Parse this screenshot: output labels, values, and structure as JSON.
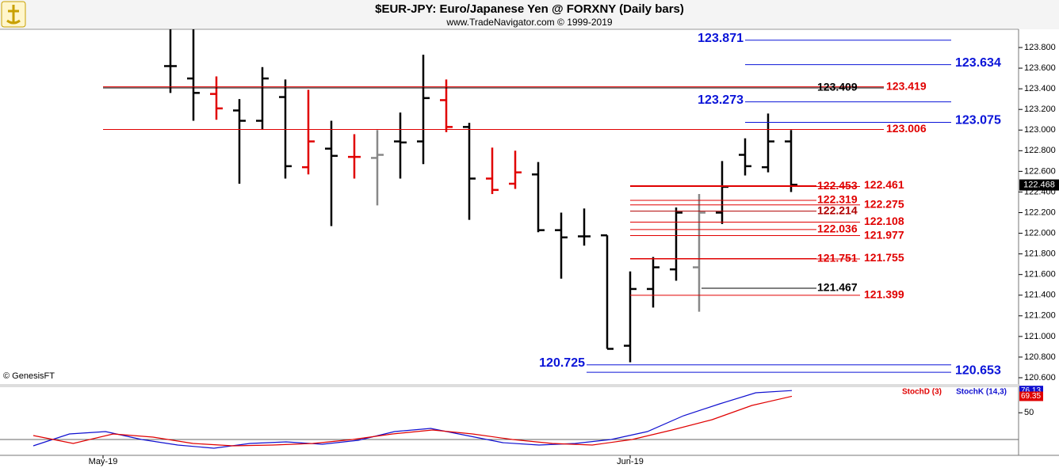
{
  "chart_data": {
    "type": "ohlc",
    "title": "$EUR-JPY:  Euro/Japanese Yen @ FORXNY  (Daily bars)",
    "subtitle": "www.TradeNavigator.com © 1999-2019",
    "credit": "© GenesisFT",
    "ylim": [
      120.6,
      123.8
    ],
    "yticks": [
      {
        "value": 123.8,
        "label": "123.800"
      },
      {
        "value": 123.6,
        "label": "123.600"
      },
      {
        "value": 123.4,
        "label": "123.400"
      },
      {
        "value": 123.2,
        "label": "123.200"
      },
      {
        "value": 123.0,
        "label": "123.000"
      },
      {
        "value": 122.8,
        "label": "122.800"
      },
      {
        "value": 122.6,
        "label": "122.600"
      },
      {
        "value": 122.4,
        "label": "122.400"
      },
      {
        "value": 122.2,
        "label": "122.200"
      },
      {
        "value": 122.0,
        "label": "122.000"
      },
      {
        "value": 121.8,
        "label": "121.800"
      },
      {
        "value": 121.6,
        "label": "121.600"
      },
      {
        "value": 121.4,
        "label": "121.400"
      },
      {
        "value": 121.2,
        "label": "121.200"
      },
      {
        "value": 121.0,
        "label": "121.000"
      },
      {
        "value": 120.8,
        "label": "120.800"
      },
      {
        "value": 120.6,
        "label": "120.600"
      }
    ],
    "x_labels": [
      "May-19",
      "Jun-19"
    ],
    "last": 122.468,
    "bars": [
      {
        "open": 123.62,
        "high": 123.98,
        "low": 123.36,
        "close": 123.62,
        "color": "#000000"
      },
      {
        "open": 123.5,
        "high": 123.98,
        "low": 123.09,
        "close": 123.36,
        "color": "#000000"
      },
      {
        "open": 123.35,
        "high": 123.52,
        "low": 123.1,
        "close": 123.21,
        "color": "#e00000"
      },
      {
        "open": 123.19,
        "high": 123.3,
        "low": 122.48,
        "close": 123.09,
        "color": "#000000"
      },
      {
        "open": 123.09,
        "high": 123.61,
        "low": 123.01,
        "close": 123.5,
        "color": "#000000"
      },
      {
        "open": 123.32,
        "high": 123.49,
        "low": 122.53,
        "close": 122.65,
        "color": "#000000"
      },
      {
        "open": 122.64,
        "high": 123.39,
        "low": 122.57,
        "close": 122.89,
        "color": "#e00000"
      },
      {
        "open": 122.82,
        "high": 123.09,
        "low": 122.07,
        "close": 122.75,
        "color": "#000000"
      },
      {
        "open": 122.74,
        "high": 122.96,
        "low": 122.53,
        "close": 122.74,
        "color": "#e00000"
      },
      {
        "open": 122.73,
        "high": 123.0,
        "low": 122.27,
        "close": 122.76,
        "color": "#888888"
      },
      {
        "open": 122.89,
        "high": 123.17,
        "low": 122.53,
        "close": 122.88,
        "color": "#000000"
      },
      {
        "open": 122.89,
        "high": 123.73,
        "low": 122.67,
        "close": 123.31,
        "color": "#000000"
      },
      {
        "open": 123.29,
        "high": 123.49,
        "low": 122.98,
        "close": 123.03,
        "color": "#e00000"
      },
      {
        "open": 123.03,
        "high": 123.07,
        "low": 122.13,
        "close": 122.53,
        "color": "#000000"
      },
      {
        "open": 122.53,
        "high": 122.83,
        "low": 122.38,
        "close": 122.42,
        "color": "#e00000"
      },
      {
        "open": 122.48,
        "high": 122.8,
        "low": 122.43,
        "close": 122.59,
        "color": "#e00000"
      },
      {
        "open": 122.57,
        "high": 122.69,
        "low": 122.01,
        "close": 122.03,
        "color": "#000000"
      },
      {
        "open": 122.03,
        "high": 122.2,
        "low": 121.56,
        "close": 121.96,
        "color": "#000000"
      },
      {
        "open": 121.97,
        "high": 122.24,
        "low": 121.88,
        "close": 121.97,
        "color": "#000000"
      },
      {
        "open": 121.98,
        "high": 121.98,
        "low": 120.88,
        "close": 120.88,
        "color": "#000000"
      },
      {
        "open": 120.91,
        "high": 121.63,
        "low": 120.75,
        "close": 121.46,
        "color": "#000000"
      },
      {
        "open": 121.46,
        "high": 121.77,
        "low": 121.28,
        "close": 121.67,
        "color": "#000000"
      },
      {
        "open": 121.65,
        "high": 122.25,
        "low": 121.54,
        "close": 122.2,
        "color": "#000000"
      },
      {
        "open": 121.67,
        "high": 122.38,
        "low": 121.24,
        "close": 122.2,
        "color": "#888888"
      },
      {
        "open": 122.2,
        "high": 122.7,
        "low": 122.09,
        "close": 122.45,
        "color": "#000000"
      },
      {
        "open": 122.76,
        "high": 122.92,
        "low": 122.56,
        "close": 122.65,
        "color": "#000000"
      },
      {
        "open": 122.64,
        "high": 123.16,
        "low": 122.59,
        "close": 122.89,
        "color": "#000000"
      },
      {
        "open": 122.89,
        "high": 123.0,
        "low": 122.4,
        "close": 122.47,
        "color": "#000000"
      }
    ],
    "levels": [
      {
        "value": 123.871,
        "color": "#0a14d8"
      },
      {
        "value": 123.634,
        "color": "#0a14d8"
      },
      {
        "value": 123.419,
        "color": "#e00000"
      },
      {
        "value": 123.409,
        "color": "#000000"
      },
      {
        "value": 123.273,
        "color": "#0a14d8"
      },
      {
        "value": 123.075,
        "color": "#0a14d8"
      },
      {
        "value": 123.006,
        "color": "#e00000"
      },
      {
        "value": 122.461,
        "color": "#e00000"
      },
      {
        "value": 122.453,
        "color": "#e00000"
      },
      {
        "value": 122.319,
        "color": "#e00000"
      },
      {
        "value": 122.275,
        "color": "#e00000"
      },
      {
        "value": 122.214,
        "color": "#b00000"
      },
      {
        "value": 122.108,
        "color": "#e00000"
      },
      {
        "value": 122.036,
        "color": "#e00000"
      },
      {
        "value": 121.977,
        "color": "#e00000"
      },
      {
        "value": 121.751,
        "color": "#e00000"
      },
      {
        "value": 121.755,
        "color": "#e00000"
      },
      {
        "value": 121.467,
        "color": "#000000"
      },
      {
        "value": 121.399,
        "color": "#e00000"
      },
      {
        "value": 120.725,
        "color": "#0a14d8"
      },
      {
        "value": 120.653,
        "color": "#0a14d8"
      }
    ],
    "stoch": {
      "ylim": [
        0,
        80
      ],
      "yticks": [
        50
      ],
      "series": [
        {
          "name": "StochK (14,3)",
          "color": "#1010d0",
          "values": [
            11.2,
            25.1,
            27.9,
            18.6,
            12.1,
            8.4,
            14.0,
            15.8,
            13.0,
            17.7,
            27.9,
            31.6,
            23.3,
            14.9,
            12.1,
            14.0,
            18.6,
            27.9,
            46.5,
            60.5,
            73.5,
            76.13
          ]
        },
        {
          "name": "StochD (3)",
          "color": "#e00000",
          "values": [
            23.3,
            14.0,
            25.1,
            21.4,
            14.0,
            11.2,
            12.1,
            14.0,
            18.6,
            25.1,
            29.8,
            25.1,
            18.6,
            14.0,
            12.1,
            18.6,
            29.8,
            41.9,
            58.6,
            69.35
          ]
        }
      ]
    }
  }
}
